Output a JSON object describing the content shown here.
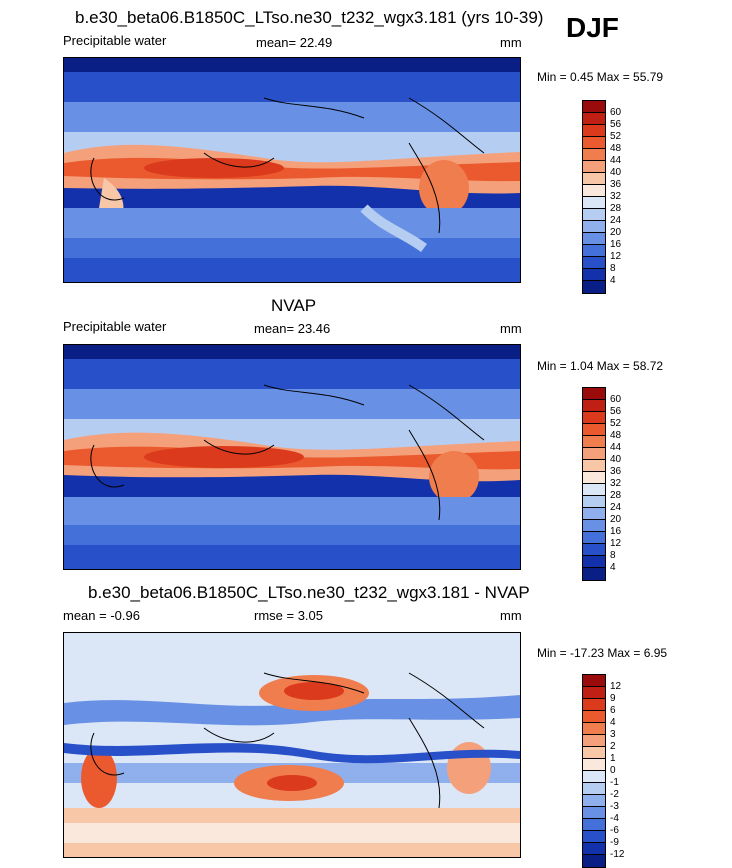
{
  "season": "DJF",
  "panels": [
    {
      "title": "b.e30_beta06.B1850C_LTso.ne30_t232_wgx3.181 (yrs 10-39)",
      "left_label": "Precipitable water",
      "center_label": "mean=  22.49",
      "right_label": "mm",
      "minmax": "Min =   0.45 Max =  55.79",
      "levels": [
        "60",
        "56",
        "52",
        "48",
        "44",
        "40",
        "36",
        "32",
        "28",
        "24",
        "20",
        "16",
        "12",
        "8",
        "4"
      ],
      "colors": [
        "#9a0b0b",
        "#c01f13",
        "#db3a1d",
        "#ea5a2e",
        "#f07d4e",
        "#f4a07b",
        "#f8c7a8",
        "#fbe8dc",
        "#dbe6f7",
        "#b6cdf2",
        "#8fb0ec",
        "#6890e4",
        "#4370d9",
        "#2850c8",
        "#1331aa",
        "#0a1f86"
      ]
    },
    {
      "title": "NVAP",
      "left_label": "Precipitable water",
      "center_label": "mean=  23.46",
      "right_label": "mm",
      "minmax": "Min =   1.04 Max =  58.72",
      "levels": [
        "60",
        "56",
        "52",
        "48",
        "44",
        "40",
        "36",
        "32",
        "28",
        "24",
        "20",
        "16",
        "12",
        "8",
        "4"
      ],
      "colors": [
        "#9a0b0b",
        "#c01f13",
        "#db3a1d",
        "#ea5a2e",
        "#f07d4e",
        "#f4a07b",
        "#f8c7a8",
        "#fbe8dc",
        "#dbe6f7",
        "#b6cdf2",
        "#8fb0ec",
        "#6890e4",
        "#4370d9",
        "#2850c8",
        "#1331aa",
        "#0a1f86"
      ]
    },
    {
      "title": "b.e30_beta06.B1850C_LTso.ne30_t232_wgx3.181 - NVAP",
      "left_label": "mean =  -0.96",
      "center_label": "rmse =   3.05",
      "right_label": "mm",
      "minmax": "Min = -17.23 Max =   6.95",
      "levels": [
        "12",
        "9",
        "6",
        "4",
        "3",
        "2",
        "1",
        "0",
        "-1",
        "-2",
        "-3",
        "-4",
        "-6",
        "-9",
        "-12"
      ],
      "colors": [
        "#9a0b0b",
        "#c01f13",
        "#db3a1d",
        "#ea5a2e",
        "#f07d4e",
        "#f4a07b",
        "#f8c7a8",
        "#fbe8dc",
        "#dbe6f7",
        "#b6cdf2",
        "#8fb0ec",
        "#6890e4",
        "#4370d9",
        "#2850c8",
        "#1331aa",
        "#0a1f86"
      ]
    }
  ]
}
